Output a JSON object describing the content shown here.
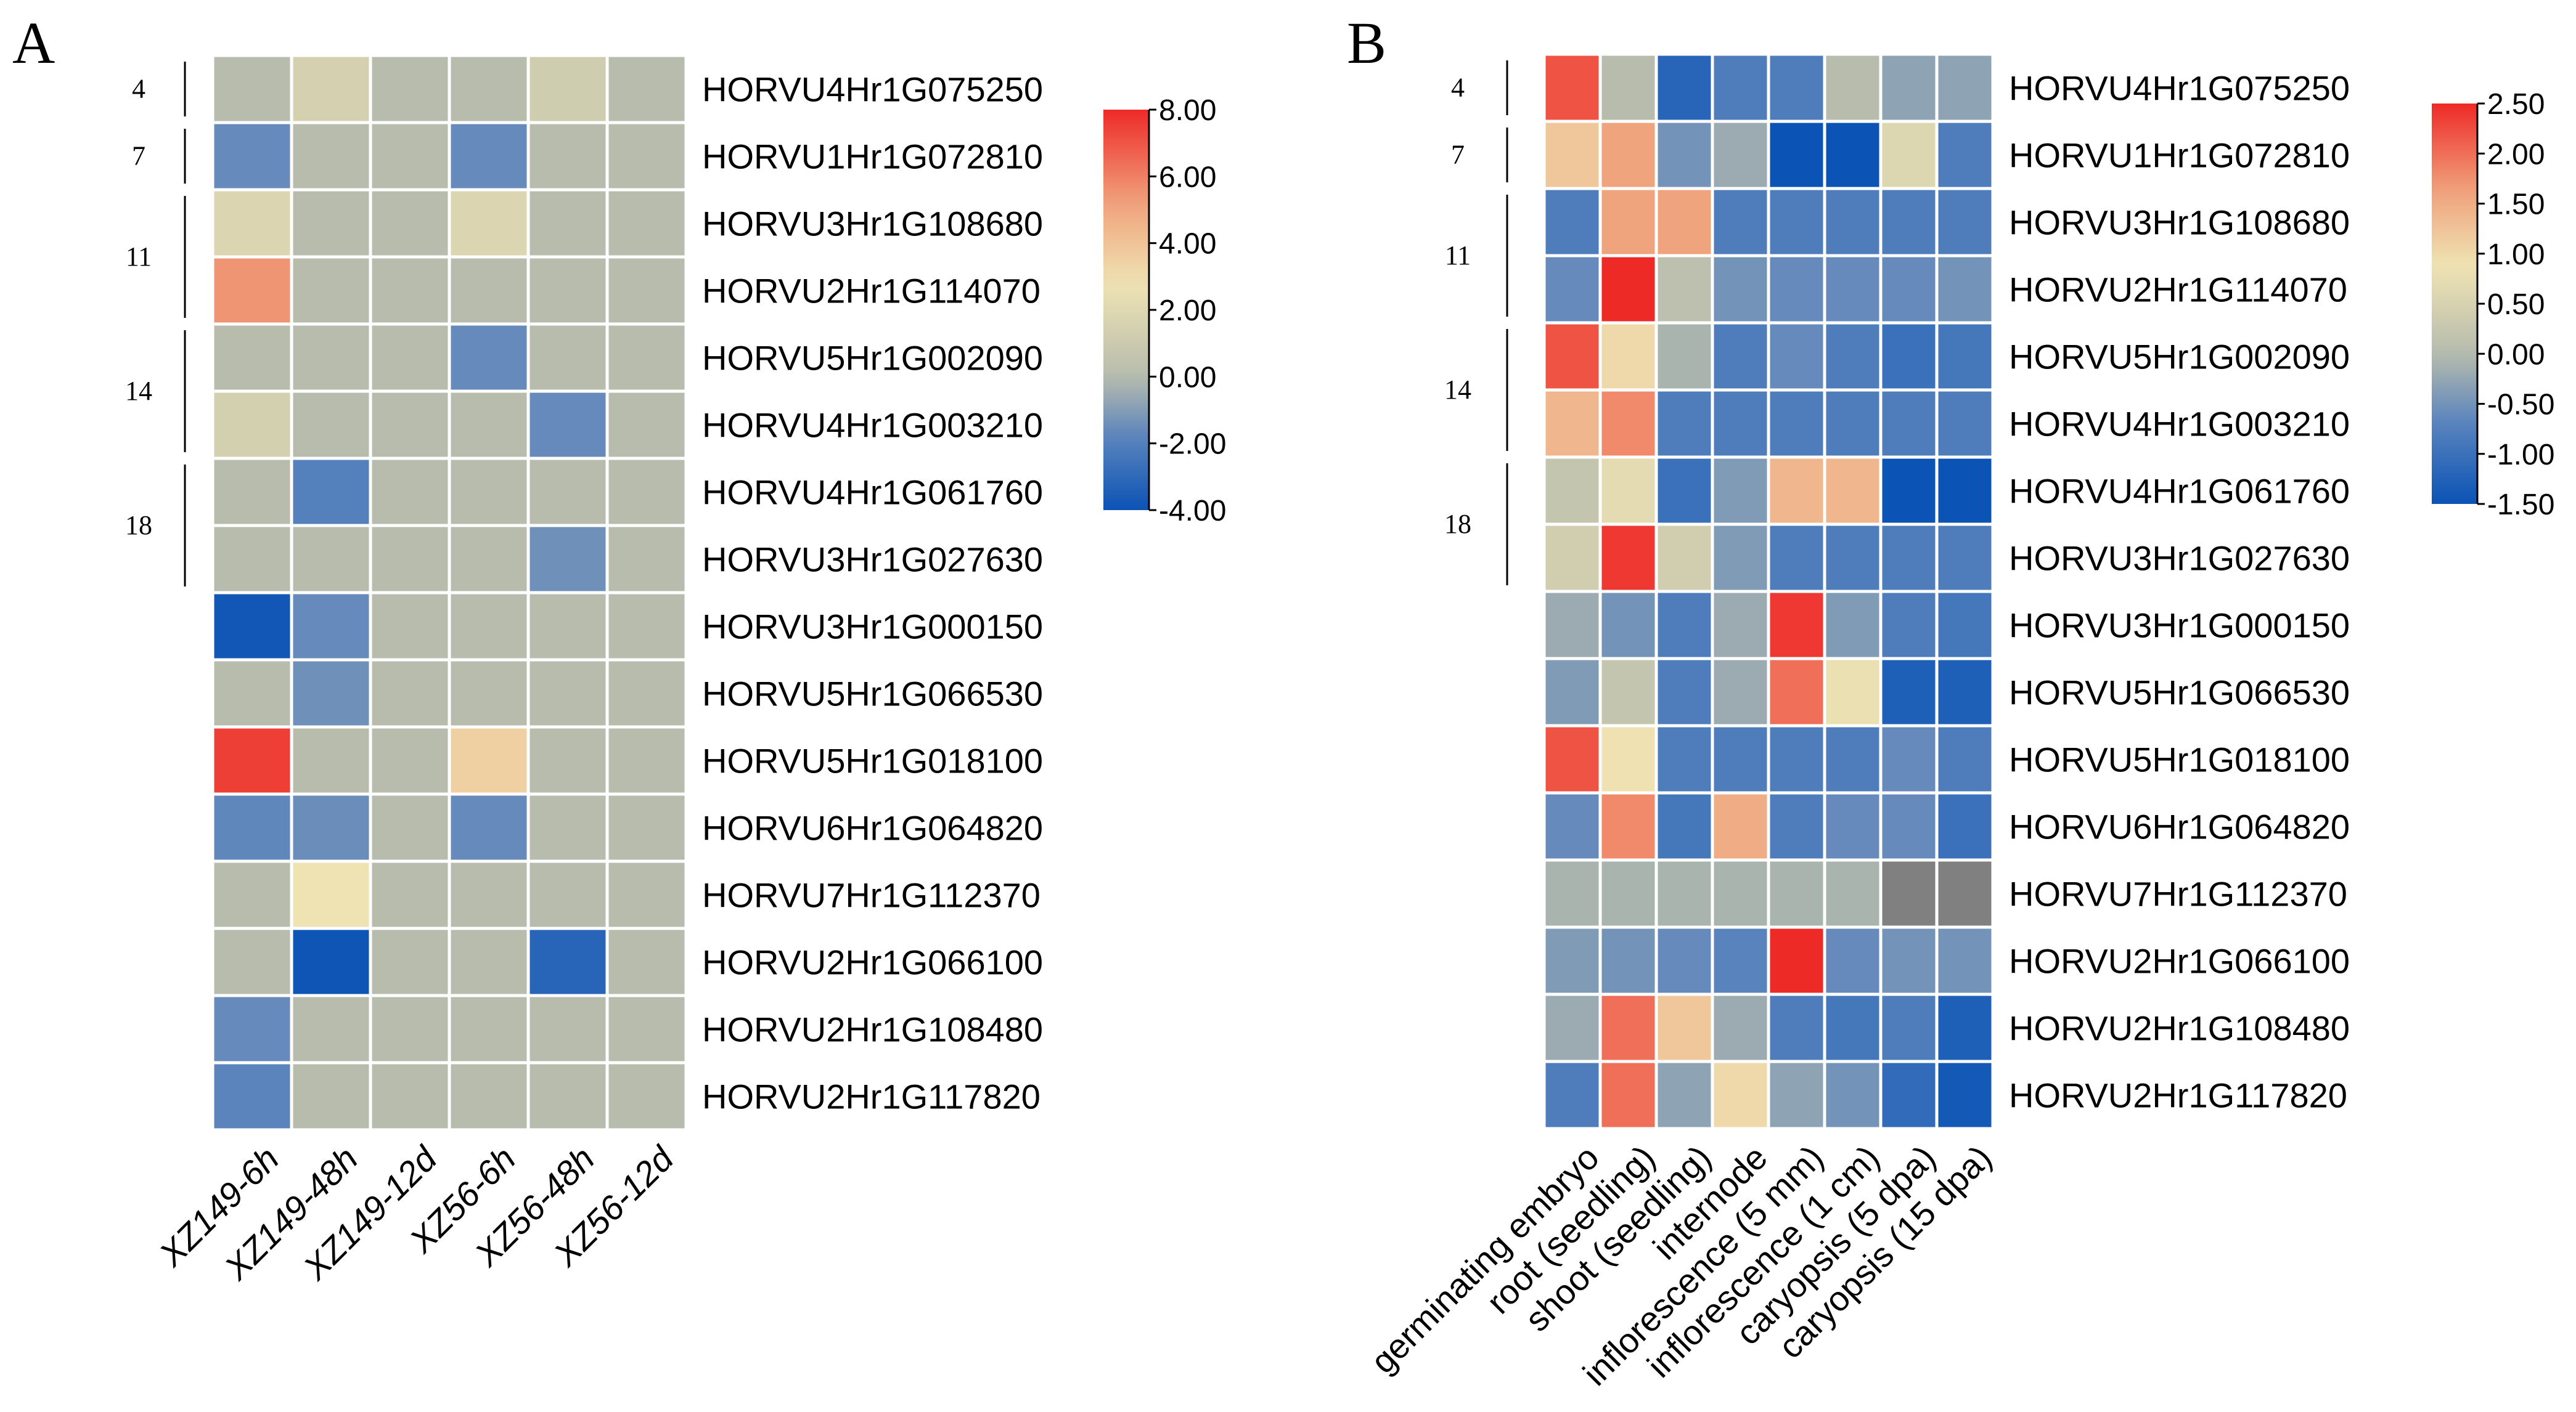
{
  "chart_data": [
    {
      "type": "heatmap",
      "panel_label": "A",
      "columns": [
        "XZ149-6h",
        "XZ149-48h",
        "XZ149-12d",
        "XZ56-6h",
        "XZ56-48h",
        "XZ56-12d"
      ],
      "rows": [
        "HORVU4Hr1G075250",
        "HORVU1Hr1G072810",
        "HORVU3Hr1G108680",
        "HORVU2Hr1G114070",
        "HORVU5Hr1G002090",
        "HORVU4Hr1G003210",
        "HORVU4Hr1G061760",
        "HORVU3Hr1G027630",
        "HORVU3Hr1G000150",
        "HORVU5Hr1G066530",
        "HORVU5Hr1G018100",
        "HORVU6Hr1G064820",
        "HORVU7Hr1G112370",
        "HORVU2Hr1G066100",
        "HORVU2Hr1G108480",
        "HORVU2Hr1G117820"
      ],
      "values": [
        [
          0,
          1.5,
          0,
          0,
          1.2,
          0
        ],
        [
          -1.6,
          0,
          0,
          -1.6,
          0,
          0
        ],
        [
          1.8,
          0,
          0,
          1.8,
          0,
          0
        ],
        [
          5.5,
          0,
          0,
          0,
          0,
          0
        ],
        [
          0,
          0,
          0,
          -1.6,
          0,
          0
        ],
        [
          1.4,
          0,
          0,
          0,
          -1.6,
          0
        ],
        [
          0,
          -2.0,
          0,
          0,
          0,
          0
        ],
        [
          0,
          0,
          0,
          0,
          -1.4,
          0
        ],
        [
          -3.8,
          -1.6,
          0,
          0,
          0,
          0
        ],
        [
          0,
          -1.4,
          0,
          0,
          0,
          0
        ],
        [
          7.5,
          0,
          0,
          3.5,
          0,
          0
        ],
        [
          -1.7,
          -1.5,
          0,
          -1.6,
          0,
          0
        ],
        [
          0,
          2.8,
          0,
          0,
          0,
          0
        ],
        [
          0,
          -3.9,
          0,
          0,
          -3.2,
          0
        ],
        [
          -1.6,
          0,
          0,
          0,
          0,
          0
        ],
        [
          -1.8,
          0,
          0,
          0,
          0,
          0
        ]
      ],
      "groups": [
        {
          "label": "4",
          "start": 0,
          "end": 0
        },
        {
          "label": "7",
          "start": 1,
          "end": 1
        },
        {
          "label": "11",
          "start": 2,
          "end": 3
        },
        {
          "label": "14",
          "start": 4,
          "end": 5
        },
        {
          "label": "18",
          "start": 6,
          "end": 7
        }
      ],
      "colorbar": {
        "min": -4.0,
        "max": 8.0,
        "ticks": [
          "8.00",
          "6.00",
          "4.00",
          "2.00",
          "0.00",
          "-2.00",
          "-4.00"
        ]
      },
      "missing": []
    },
    {
      "type": "heatmap",
      "panel_label": "B",
      "columns": [
        "germinating embryo",
        "root (seedling)",
        "shoot (seedling)",
        "internode",
        "inflorescence (5 mm)",
        "inflorescence (1 cm)",
        "caryopsis (5 dpa)",
        "caryopsis (15 dpa)"
      ],
      "rows": [
        "HORVU4Hr1G075250",
        "HORVU1Hr1G072810",
        "HORVU3Hr1G108680",
        "HORVU2Hr1G114070",
        "HORVU5Hr1G002090",
        "HORVU4Hr1G003210",
        "HORVU4Hr1G061760",
        "HORVU3Hr1G027630",
        "HORVU3Hr1G000150",
        "HORVU5Hr1G066530",
        "HORVU5Hr1G018100",
        "HORVU6Hr1G064820",
        "HORVU7Hr1G112370",
        "HORVU2Hr1G066100",
        "HORVU2Hr1G108480",
        "HORVU2Hr1G117820"
      ],
      "values": [
        [
          2.2,
          0.0,
          -1.2,
          -0.8,
          -0.8,
          0.0,
          -0.3,
          -0.3
        ],
        [
          1.2,
          1.6,
          -0.5,
          -0.2,
          -1.5,
          -1.5,
          0.6,
          -0.8
        ],
        [
          -0.8,
          1.6,
          1.6,
          -0.8,
          -0.8,
          -0.8,
          -0.8,
          -0.8
        ],
        [
          -0.6,
          2.5,
          0.1,
          -0.5,
          -0.6,
          -0.6,
          -0.6,
          -0.5
        ],
        [
          2.2,
          1.0,
          -0.1,
          -0.8,
          -0.6,
          -0.8,
          -1.0,
          -0.9
        ],
        [
          1.4,
          1.8,
          -0.8,
          -0.8,
          -0.8,
          -0.8,
          -0.8,
          -0.8
        ],
        [
          0.2,
          0.7,
          -1.0,
          -0.4,
          1.4,
          1.4,
          -1.5,
          -1.5
        ],
        [
          0.4,
          2.4,
          0.4,
          -0.4,
          -0.8,
          -0.8,
          -0.8,
          -0.8
        ],
        [
          -0.2,
          -0.5,
          -0.8,
          -0.2,
          2.4,
          -0.4,
          -0.8,
          -0.9
        ],
        [
          -0.4,
          0.2,
          -0.8,
          -0.2,
          2.0,
          0.8,
          -1.3,
          -1.3
        ],
        [
          2.2,
          0.9,
          -0.8,
          -0.8,
          -0.8,
          -0.8,
          -0.6,
          -0.8
        ],
        [
          -0.6,
          1.8,
          -0.9,
          1.5,
          -0.8,
          -0.6,
          -0.6,
          -1.0
        ],
        [
          -0.1,
          -0.1,
          -0.1,
          -0.1,
          -0.1,
          -0.1,
          null,
          null
        ],
        [
          -0.4,
          -0.5,
          -0.6,
          -0.7,
          2.5,
          -0.6,
          -0.5,
          -0.5
        ],
        [
          -0.2,
          2.0,
          1.2,
          -0.2,
          -0.8,
          -0.9,
          -0.8,
          -1.3
        ],
        [
          -0.8,
          2.0,
          -0.3,
          1.0,
          -0.3,
          -0.5,
          -1.1,
          -1.4
        ]
      ],
      "groups": [
        {
          "label": "4",
          "start": 0,
          "end": 0
        },
        {
          "label": "7",
          "start": 1,
          "end": 1
        },
        {
          "label": "11",
          "start": 2,
          "end": 3
        },
        {
          "label": "14",
          "start": 4,
          "end": 5
        },
        {
          "label": "18",
          "start": 6,
          "end": 7
        }
      ],
      "colorbar": {
        "min": -1.5,
        "max": 2.5,
        "ticks": [
          "2.50",
          "2.00",
          "1.50",
          "1.00",
          "0.50",
          "0.00",
          "-0.50",
          "-1.00",
          "-1.50"
        ]
      }
    }
  ],
  "colors": {
    "low": "#0b53b5",
    "mid_low": "#5b84bd",
    "neutral": "#b7bcad",
    "mid_high": "#efe3b3",
    "high2": "#f0a27c",
    "high": "#ee2a27",
    "missing": "#808080"
  }
}
